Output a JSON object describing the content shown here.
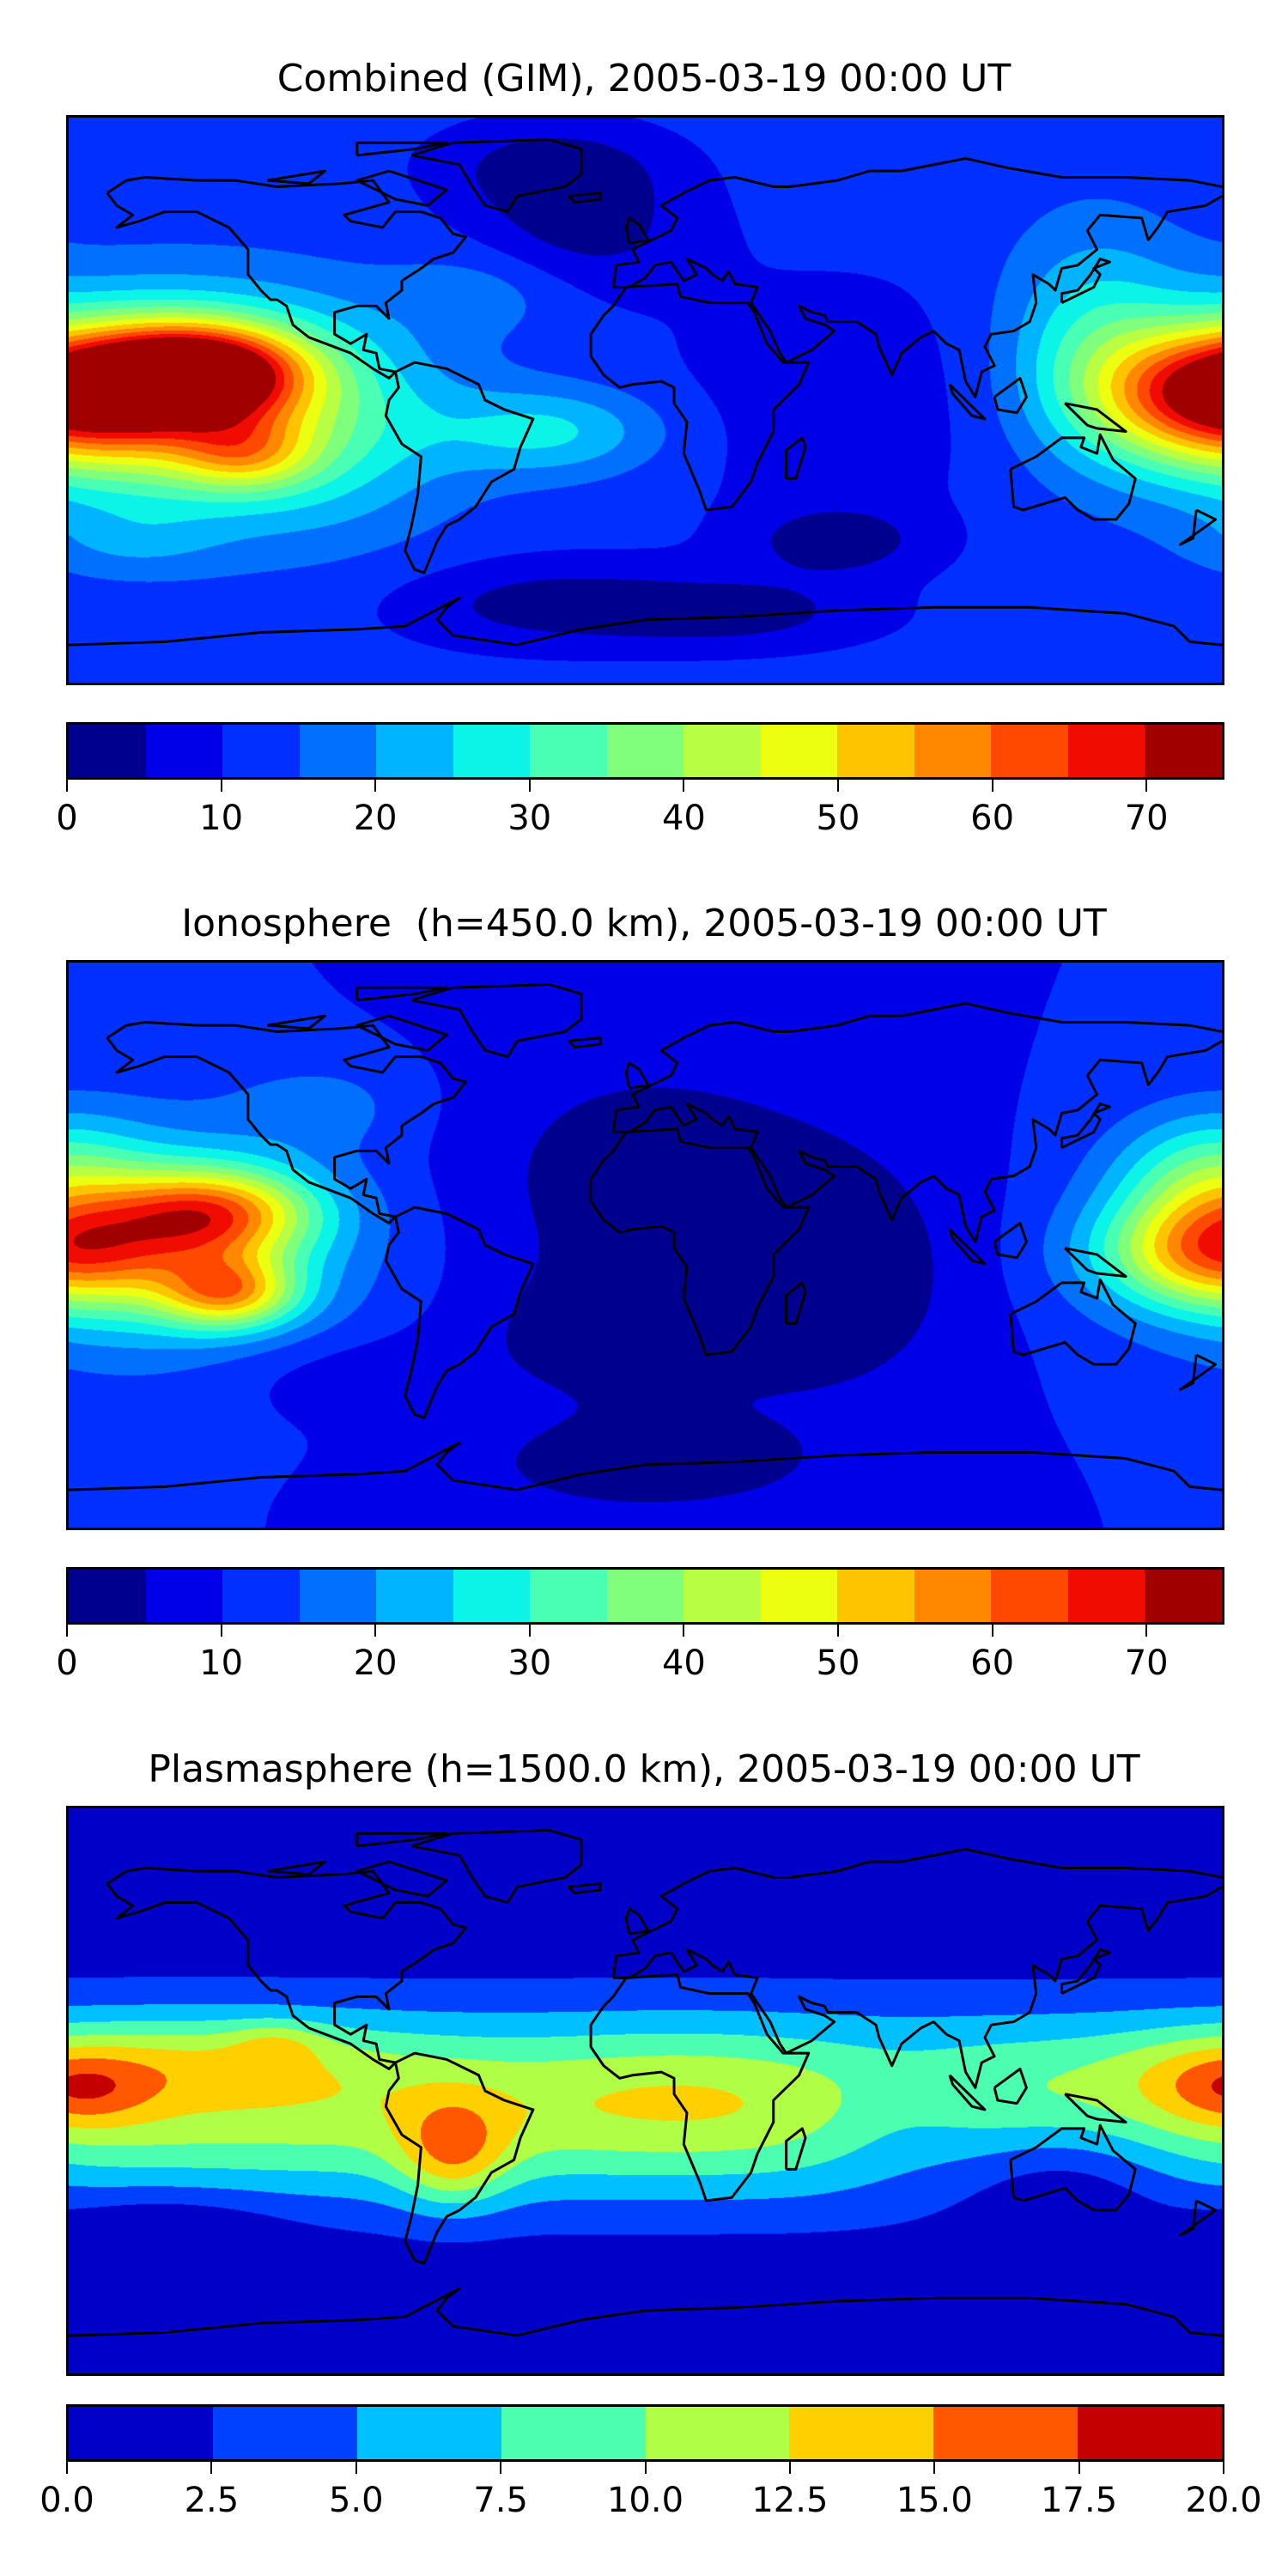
{
  "chart_data": [
    {
      "type": "heatmap",
      "title": "Combined (GIM), 2005-03-19 00:00 UT",
      "projection": "equirectangular",
      "xlim": [
        -180,
        180
      ],
      "ylim": [
        -90,
        90
      ],
      "colorbar": {
        "levels": [
          0,
          5,
          10,
          15,
          20,
          25,
          30,
          35,
          40,
          45,
          50,
          55,
          60,
          65,
          70,
          75
        ],
        "colors": [
          "#00008f",
          "#0000e8",
          "#0030ff",
          "#0070ff",
          "#00b4ff",
          "#0cf4e8",
          "#48ffb4",
          "#80ff7c",
          "#b8ff44",
          "#ecff10",
          "#ffc400",
          "#ff8800",
          "#ff4800",
          "#f00c00",
          "#a00000"
        ],
        "ticks": [
          0,
          10,
          20,
          30,
          40,
          50,
          60,
          70
        ],
        "tick_labels": [
          "0",
          "10",
          "20",
          "30",
          "40",
          "50",
          "60",
          "70"
        ]
      },
      "field_base": 12,
      "field_components": [
        {
          "lon": -140,
          "lat": 9,
          "amp": 50,
          "slon": 22,
          "slat": 10
        },
        {
          "lon": -150,
          "lat": 0,
          "amp": 36,
          "slon": 40,
          "slat": 22
        },
        {
          "lon": -125,
          "lat": -17,
          "amp": 18,
          "slon": 15,
          "slat": 8
        },
        {
          "lon": 178,
          "lat": 2,
          "amp": 42,
          "slon": 25,
          "slat": 14
        },
        {
          "lon": 140,
          "lat": 20,
          "amp": 14,
          "slon": 20,
          "slat": 25
        },
        {
          "lon": -100,
          "lat": -10,
          "amp": 10,
          "slon": 30,
          "slat": 25
        },
        {
          "lon": -30,
          "lat": -10,
          "amp": 14,
          "slon": 25,
          "slat": 10
        },
        {
          "lon": -50,
          "lat": 35,
          "amp": 6,
          "slon": 20,
          "slat": 10
        },
        {
          "lon": -20,
          "lat": 55,
          "amp": -9,
          "slon": 25,
          "slat": 15
        },
        {
          "lon": -30,
          "lat": 75,
          "amp": -8,
          "slon": 25,
          "slat": 10
        },
        {
          "lon": 60,
          "lat": -45,
          "amp": -9,
          "slon": 20,
          "slat": 8
        },
        {
          "lon": -30,
          "lat": -65,
          "amp": -9,
          "slon": 35,
          "slat": 10
        },
        {
          "lon": 30,
          "lat": -68,
          "amp": -8,
          "slon": 30,
          "slat": 8
        },
        {
          "lon": 60,
          "lat": 0,
          "amp": -5,
          "slon": 40,
          "slat": 30
        },
        {
          "lon": -160,
          "lat": -45,
          "amp": 6,
          "slon": 20,
          "slat": 8
        }
      ]
    },
    {
      "type": "heatmap",
      "title": "Ionosphere  (h=450.0 km), 2005-03-19 00:00 UT",
      "projection": "equirectangular",
      "xlim": [
        -180,
        180
      ],
      "ylim": [
        -90,
        90
      ],
      "colorbar": {
        "levels": [
          0,
          5,
          10,
          15,
          20,
          25,
          30,
          35,
          40,
          45,
          50,
          55,
          60,
          65,
          70,
          75
        ],
        "colors": [
          "#00008f",
          "#0000e8",
          "#0030ff",
          "#0070ff",
          "#00b4ff",
          "#0cf4e8",
          "#48ffb4",
          "#80ff7c",
          "#b8ff44",
          "#ecff10",
          "#ffc400",
          "#ff8800",
          "#ff4800",
          "#f00c00",
          "#a00000"
        ],
        "ticks": [
          0,
          10,
          20,
          30,
          40,
          50,
          60,
          70
        ],
        "tick_labels": [
          "0",
          "10",
          "20",
          "30",
          "40",
          "50",
          "60",
          "70"
        ]
      },
      "field_base": 10,
      "field_components": [
        {
          "lon": -135,
          "lat": 10,
          "amp": 36,
          "slon": 22,
          "slat": 10
        },
        {
          "lon": -130,
          "lat": -15,
          "amp": 32,
          "slon": 15,
          "slat": 8
        },
        {
          "lon": -150,
          "lat": 0,
          "amp": 22,
          "slon": 40,
          "slat": 25
        },
        {
          "lon": 178,
          "lat": -3,
          "amp": 34,
          "slon": 25,
          "slat": 12
        },
        {
          "lon": 175,
          "lat": 20,
          "amp": 18,
          "slon": 20,
          "slat": 15
        },
        {
          "lon": 0,
          "lat": 20,
          "amp": -8,
          "slon": 40,
          "slat": 30
        },
        {
          "lon": 60,
          "lat": -10,
          "amp": -8,
          "slon": 30,
          "slat": 30
        },
        {
          "lon": -10,
          "lat": -30,
          "amp": -7,
          "slon": 30,
          "slat": 15
        },
        {
          "lon": 0,
          "lat": -70,
          "amp": -8,
          "slon": 40,
          "slat": 12
        },
        {
          "lon": -100,
          "lat": -40,
          "amp": -4,
          "slon": 30,
          "slat": 10
        },
        {
          "lon": -100,
          "lat": 45,
          "amp": 6,
          "slon": 20,
          "slat": 10
        }
      ]
    },
    {
      "type": "heatmap",
      "title": "Plasmasphere (h=1500.0 km), 2005-03-19 00:00 UT",
      "projection": "equirectangular",
      "xlim": [
        -180,
        180
      ],
      "ylim": [
        -90,
        90
      ],
      "colorbar": {
        "levels": [
          0,
          2.5,
          5,
          7.5,
          10,
          12.5,
          15,
          17.5,
          20
        ],
        "colors": [
          "#0000c8",
          "#0040ff",
          "#00c0ff",
          "#4cffb0",
          "#b0ff46",
          "#ffd000",
          "#ff5800",
          "#c40000"
        ],
        "ticks": [
          0,
          2.5,
          5,
          7.5,
          10,
          12.5,
          15,
          17.5,
          20
        ],
        "tick_labels": [
          "0.0",
          "2.5",
          "5.0",
          "7.5",
          "10.0",
          "12.5",
          "15.0",
          "17.5",
          "20.0"
        ]
      },
      "field_base": 0.5,
      "field_components": [
        {
          "lon": 0,
          "lat": -5,
          "amp": 11,
          "slon": 1000,
          "slat": 22
        },
        {
          "lon": -60,
          "lat": -20,
          "amp": 7,
          "slon": 12,
          "slat": 12
        },
        {
          "lon": -140,
          "lat": 10,
          "amp": 4,
          "slon": 40,
          "slat": 10
        },
        {
          "lon": -175,
          "lat": 0,
          "amp": 4,
          "slon": 15,
          "slat": 8
        },
        {
          "lon": -115,
          "lat": 15,
          "amp": 3,
          "slon": 10,
          "slat": 5
        },
        {
          "lon": 10,
          "lat": 0,
          "amp": 1.5,
          "slon": 30,
          "slat": 15
        },
        {
          "lon": 80,
          "lat": -10,
          "amp": -3,
          "slon": 20,
          "slat": 15
        },
        {
          "lon": 130,
          "lat": -25,
          "amp": -5,
          "slon": 25,
          "slat": 15
        },
        {
          "lon": -150,
          "lat": -45,
          "amp": -3,
          "slon": 25,
          "slat": 10
        },
        {
          "lon": 175,
          "lat": 5,
          "amp": 2,
          "slon": 20,
          "slat": 10
        }
      ]
    }
  ]
}
